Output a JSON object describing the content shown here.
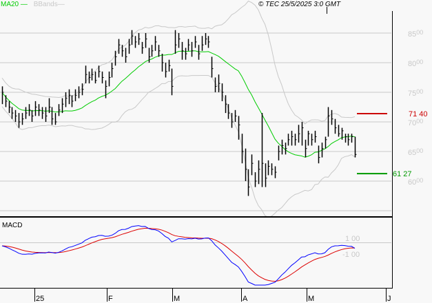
{
  "header": {
    "legend": [
      {
        "label": "MA20",
        "color": "#00cc00"
      },
      {
        "label": "BBands",
        "color": "#c8c8c8"
      }
    ],
    "copyright": "© TEC 25/5/2025 3:0 GMT"
  },
  "chart_data": [
    {
      "type": "ohlc",
      "indicators": [
        "MA20",
        "BBands"
      ],
      "y_ticks": [
        "8500",
        "8000",
        "7500",
        "7000",
        "6500",
        "6000"
      ],
      "ylim": [
        5500,
        8900
      ],
      "grid": true,
      "x_ticks": [
        "25",
        "F",
        "M",
        "A",
        "M",
        "J"
      ],
      "bars_hlc": [
        [
          7600,
          7300,
          7500
        ],
        [
          7450,
          7250,
          7350
        ],
        [
          7350,
          7150,
          7250
        ],
        [
          7250,
          7050,
          7150
        ],
        [
          7200,
          7000,
          7100
        ],
        [
          7150,
          6900,
          7000
        ],
        [
          7150,
          6950,
          7050
        ],
        [
          7250,
          7050,
          7150
        ],
        [
          7300,
          7100,
          7200
        ],
        [
          7200,
          7000,
          7100
        ],
        [
          7350,
          7100,
          7250
        ],
        [
          7300,
          7100,
          7200
        ],
        [
          7250,
          7050,
          7150
        ],
        [
          7250,
          7000,
          7100
        ],
        [
          7400,
          7150,
          7250
        ],
        [
          7250,
          6950,
          7050
        ],
        [
          7150,
          6950,
          7000
        ],
        [
          7300,
          7100,
          7200
        ],
        [
          7400,
          7150,
          7300
        ],
        [
          7500,
          7250,
          7400
        ],
        [
          7550,
          7300,
          7450
        ],
        [
          7450,
          7250,
          7350
        ],
        [
          7550,
          7350,
          7450
        ],
        [
          7600,
          7400,
          7500
        ],
        [
          7650,
          7450,
          7550
        ],
        [
          7950,
          7650,
          7800
        ],
        [
          7850,
          7650,
          7750
        ],
        [
          7900,
          7700,
          7800
        ],
        [
          7850,
          7650,
          7700
        ],
        [
          7950,
          7750,
          7850
        ],
        [
          7850,
          7650,
          7750
        ],
        [
          7700,
          7400,
          7600
        ],
        [
          7850,
          7600,
          7750
        ],
        [
          8000,
          7750,
          7900
        ],
        [
          8200,
          7950,
          8100
        ],
        [
          8400,
          8150,
          8300
        ],
        [
          8300,
          8100,
          8200
        ],
        [
          8250,
          8000,
          8100
        ],
        [
          8400,
          8150,
          8300
        ],
        [
          8550,
          8300,
          8450
        ],
        [
          8450,
          8250,
          8350
        ],
        [
          8500,
          8300,
          8400
        ],
        [
          8350,
          8150,
          8250
        ],
        [
          8500,
          8250,
          8400
        ],
        [
          8250,
          8000,
          8100
        ],
        [
          8300,
          8100,
          8200
        ],
        [
          8450,
          8200,
          8350
        ],
        [
          8300,
          8100,
          8200
        ],
        [
          8150,
          7850,
          8000
        ],
        [
          8000,
          7750,
          7850
        ],
        [
          8050,
          7850,
          7950
        ],
        [
          7900,
          7450,
          7600
        ],
        [
          8550,
          8150,
          8300
        ],
        [
          8500,
          8250,
          8400
        ],
        [
          8350,
          8050,
          8200
        ],
        [
          8250,
          8050,
          8150
        ],
        [
          8400,
          8200,
          8300
        ],
        [
          8350,
          8100,
          8200
        ],
        [
          8450,
          8250,
          8350
        ],
        [
          8300,
          8050,
          8150
        ],
        [
          8450,
          8200,
          8300
        ],
        [
          8500,
          8300,
          8400
        ],
        [
          8450,
          8250,
          8350
        ],
        [
          8100,
          7750,
          7900
        ],
        [
          7750,
          7500,
          7600
        ],
        [
          7800,
          7500,
          7650
        ],
        [
          7650,
          7350,
          7500
        ],
        [
          7450,
          7150,
          7300
        ],
        [
          7300,
          7050,
          7150
        ],
        [
          7150,
          6900,
          7000
        ],
        [
          7200,
          7000,
          7100
        ],
        [
          7100,
          6700,
          6950
        ],
        [
          6800,
          6300,
          6500
        ],
        [
          6550,
          6000,
          6200
        ],
        [
          6200,
          5750,
          5900
        ],
        [
          6450,
          6100,
          6300
        ],
        [
          6150,
          5900,
          6000
        ],
        [
          6350,
          5950,
          6200
        ],
        [
          7150,
          5900,
          6300
        ],
        [
          6300,
          5900,
          6050
        ],
        [
          6350,
          6100,
          6250
        ],
        [
          6300,
          6100,
          6200
        ],
        [
          6250,
          6050,
          6150
        ],
        [
          6600,
          6350,
          6500
        ],
        [
          6700,
          6450,
          6600
        ],
        [
          6650,
          6450,
          6550
        ],
        [
          6800,
          6600,
          6700
        ],
        [
          6850,
          6600,
          6750
        ],
        [
          6800,
          6600,
          6700
        ],
        [
          6950,
          6650,
          6800
        ],
        [
          7000,
          6600,
          6900
        ],
        [
          6700,
          6400,
          6550
        ],
        [
          6850,
          6600,
          6800
        ],
        [
          6800,
          6600,
          6700
        ],
        [
          6850,
          6650,
          6750
        ],
        [
          6600,
          6300,
          6400
        ],
        [
          6650,
          6400,
          6550
        ],
        [
          6750,
          6550,
          6700
        ],
        [
          7250,
          6750,
          7100
        ],
        [
          7200,
          6950,
          7050
        ],
        [
          7050,
          6800,
          6900
        ],
        [
          6950,
          6750,
          6800
        ],
        [
          6900,
          6700,
          6850
        ],
        [
          6800,
          6650,
          6750
        ],
        [
          6800,
          6600,
          6700
        ],
        [
          6800,
          6650,
          6750
        ],
        [
          6750,
          6400,
          6450
        ]
      ],
      "levels": [
        {
          "value": "7140",
          "color": "#cc0000"
        },
        {
          "value": "6127",
          "color": "#009900"
        }
      ]
    },
    {
      "type": "line",
      "title": "MACD",
      "y_ticks": [
        "100",
        "-100"
      ],
      "series_colors": [
        "#0000ff",
        "#dd0000"
      ]
    }
  ]
}
